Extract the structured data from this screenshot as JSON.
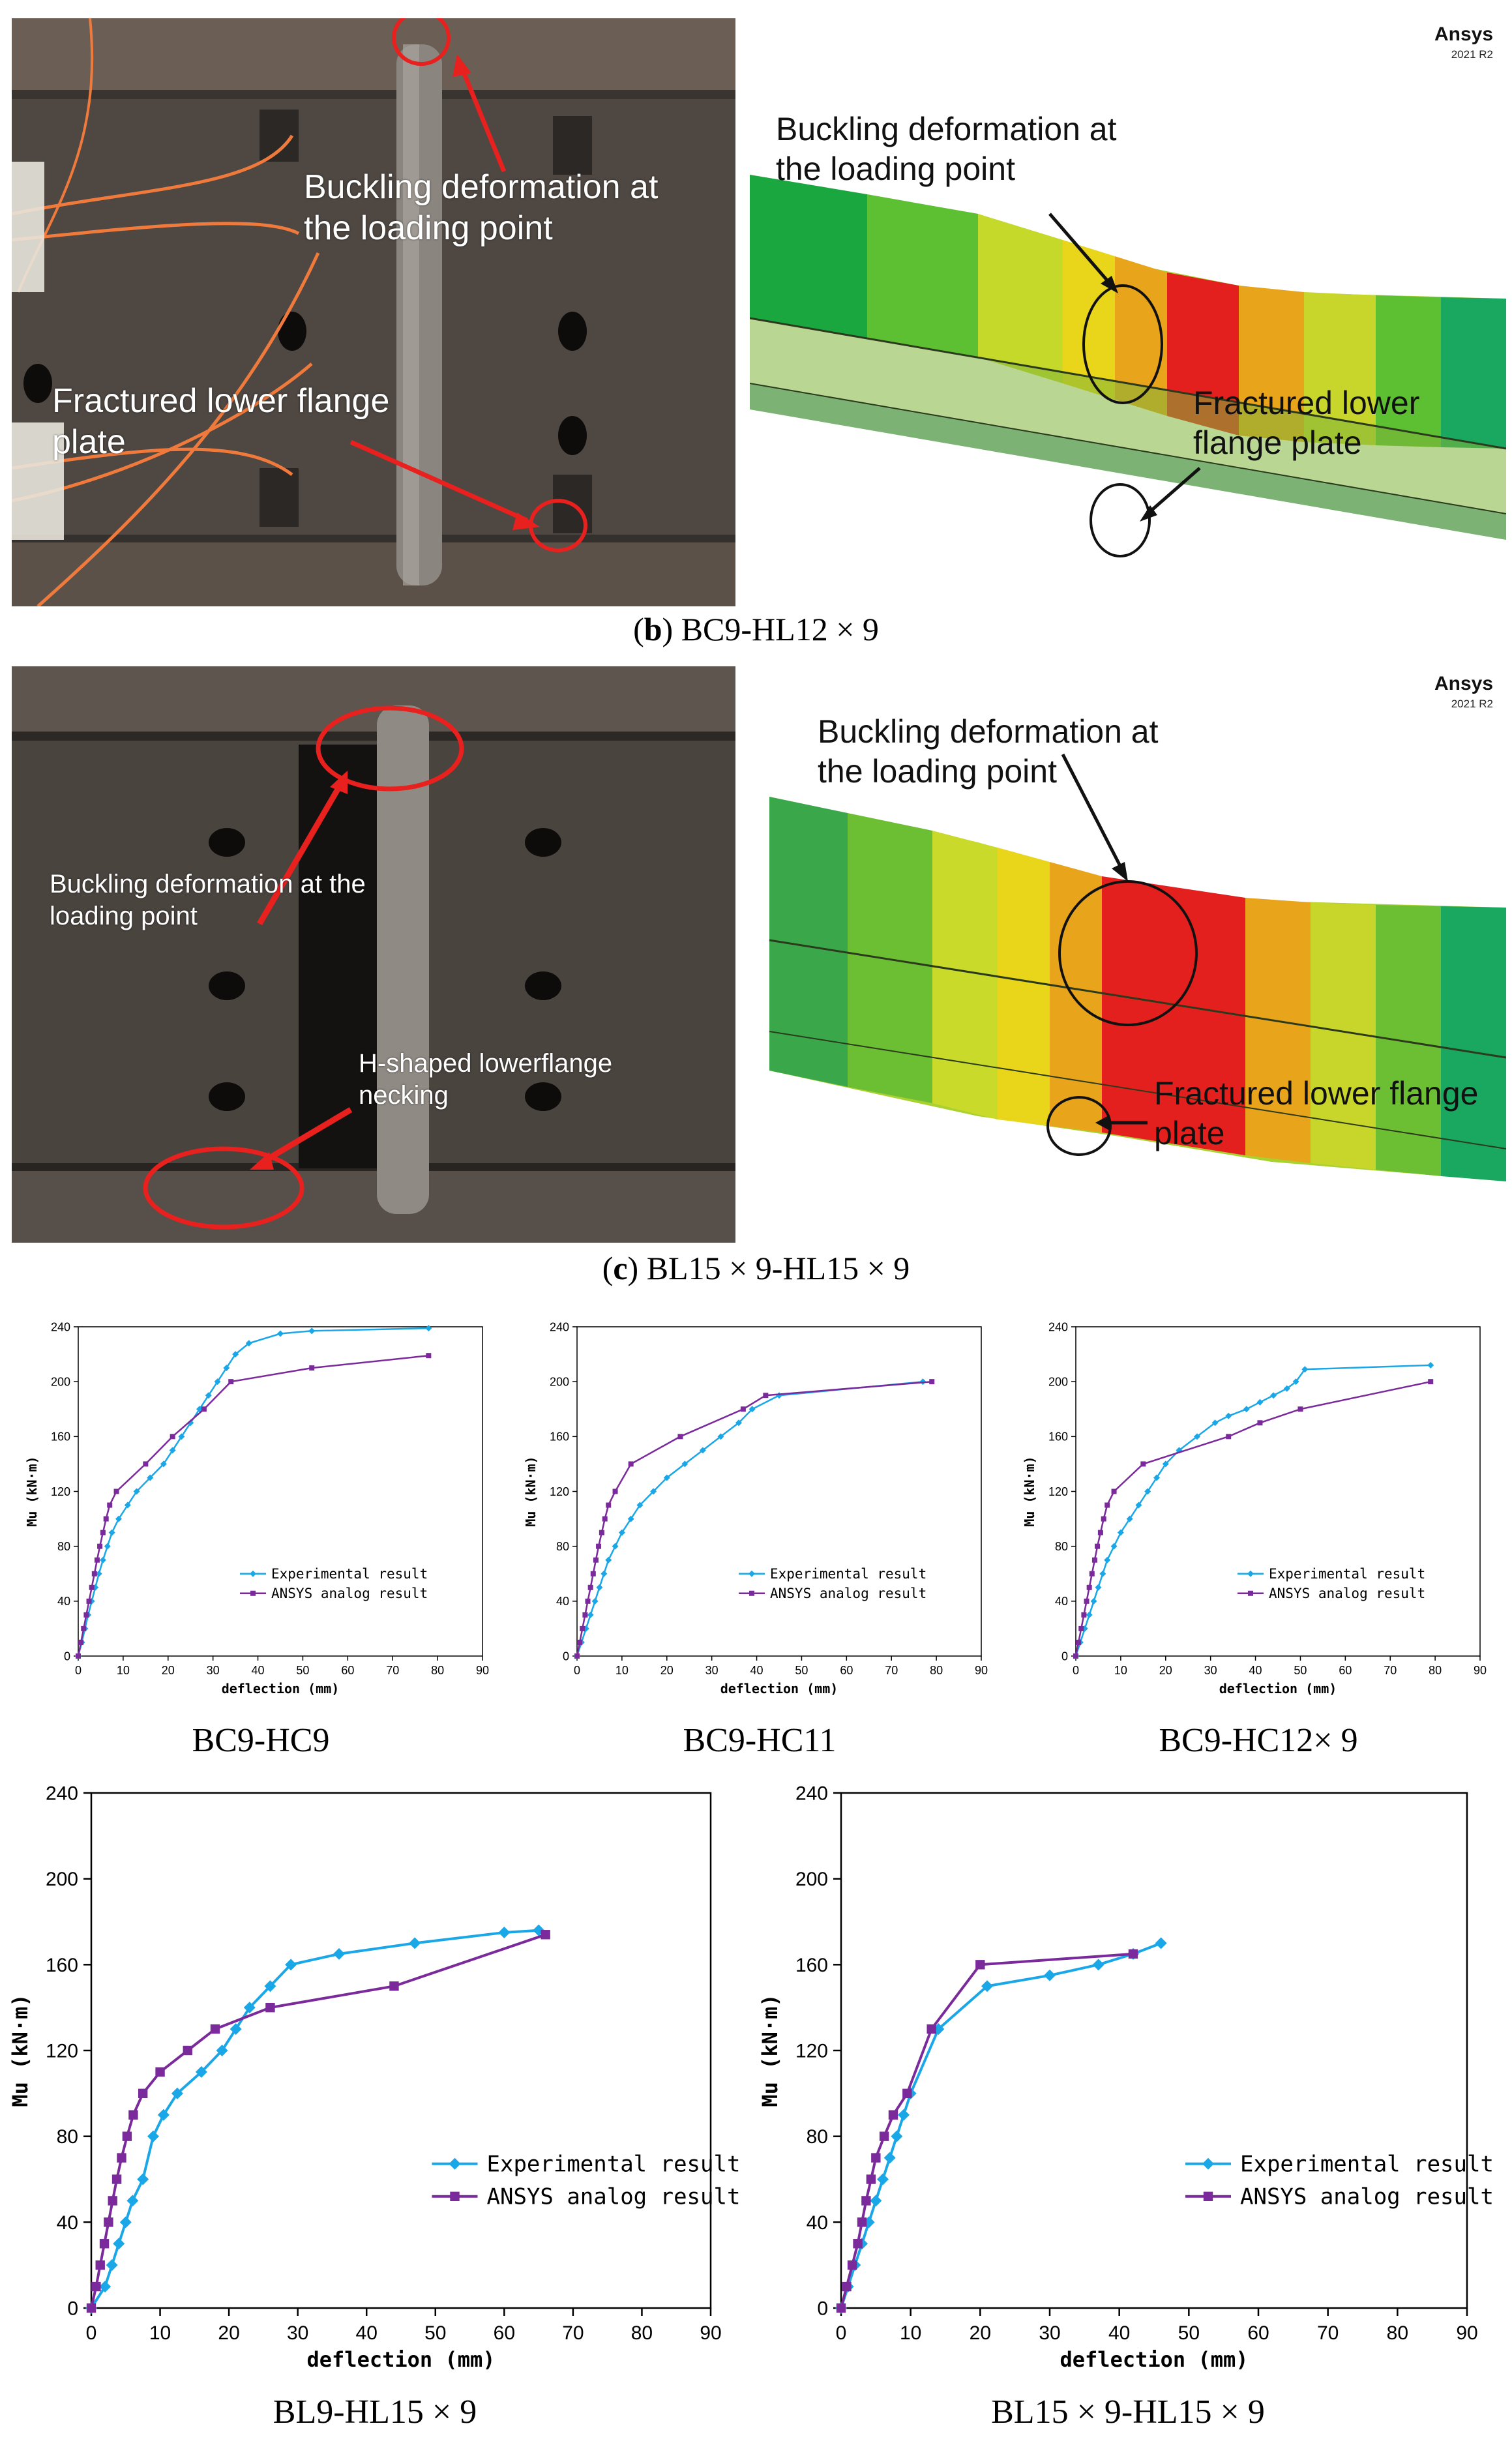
{
  "panel_b": {
    "caption_letter": "b",
    "caption_text": "BC9-HL12 × 9",
    "photo": {
      "label_buckling": "Buckling deformation at\nthe loading point",
      "label_fracture": "Fractured lower flange\nplate"
    },
    "fem": {
      "brand": "Ansys",
      "version": "2021 R2",
      "label_buckling": "Buckling deformation at\nthe loading point",
      "label_fracture": "Fractured lower\nflange plate"
    }
  },
  "panel_c": {
    "caption_letter": "c",
    "caption_text": "BL15 × 9-HL15 × 9",
    "photo": {
      "label_buckling": "Buckling deformation at the\nloading point",
      "label_necking": "H-shaped lowerflange\nnecking"
    },
    "fem": {
      "brand": "Ansys",
      "version": "2021 R2",
      "label_buckling": "Buckling deformation at\nthe loading point",
      "label_fracture": "Fractured lower flange\nplate"
    }
  },
  "colors": {
    "experimental": "#1aa7e8",
    "ansys": "#7a2a9a",
    "annotation_red": "#e8201e"
  },
  "chart_data": [
    {
      "type": "line",
      "caption": "BC9-HC9",
      "xlabel": "deflection (mm)",
      "ylabel": "Mu (kN·m)",
      "xlim": [
        0,
        90
      ],
      "ylim": [
        0,
        240
      ],
      "xticks": [
        0,
        10,
        20,
        30,
        40,
        50,
        60,
        70,
        80,
        90
      ],
      "yticks": [
        0,
        40,
        80,
        120,
        160,
        200,
        240
      ],
      "legend": "bottom-right",
      "series": [
        {
          "name": "Experimental result",
          "marker": "diamond",
          "x": [
            0,
            0.8,
            1.5,
            2.2,
            3,
            3.8,
            4.6,
            5.5,
            6.5,
            7.5,
            9,
            11,
            13,
            16,
            19,
            21,
            23,
            25,
            27,
            29,
            31,
            33,
            35,
            38,
            45,
            52,
            78
          ],
          "y": [
            0,
            10,
            20,
            30,
            40,
            50,
            60,
            70,
            80,
            90,
            100,
            110,
            120,
            130,
            140,
            150,
            160,
            170,
            180,
            190,
            200,
            210,
            220,
            228,
            235,
            237,
            239
          ]
        },
        {
          "name": "ANSYS analog result",
          "marker": "square",
          "x": [
            0,
            0.6,
            1.2,
            1.8,
            2.4,
            3,
            3.6,
            4.2,
            4.8,
            5.5,
            6.2,
            7,
            8.5,
            15,
            21,
            28,
            34,
            52,
            78
          ],
          "y": [
            0,
            10,
            20,
            30,
            40,
            50,
            60,
            70,
            80,
            90,
            100,
            110,
            120,
            140,
            160,
            180,
            200,
            210,
            219
          ]
        }
      ]
    },
    {
      "type": "line",
      "caption": "BC9-HC11",
      "xlabel": "deflection (mm)",
      "ylabel": "Mu (kN·m)",
      "xlim": [
        0,
        90
      ],
      "ylim": [
        0,
        240
      ],
      "xticks": [
        0,
        10,
        20,
        30,
        40,
        50,
        60,
        70,
        80,
        90
      ],
      "yticks": [
        0,
        40,
        80,
        120,
        160,
        200,
        240
      ],
      "legend": "bottom-right",
      "series": [
        {
          "name": "Experimental result",
          "marker": "diamond",
          "x": [
            0,
            1,
            2,
            3,
            4,
            5,
            6,
            7,
            8.5,
            10,
            12,
            14,
            17,
            20,
            24,
            28,
            32,
            36,
            39,
            45,
            77
          ],
          "y": [
            0,
            10,
            20,
            30,
            40,
            50,
            60,
            70,
            80,
            90,
            100,
            110,
            120,
            130,
            140,
            150,
            160,
            170,
            180,
            190,
            200
          ]
        },
        {
          "name": "ANSYS analog result",
          "marker": "square",
          "x": [
            0,
            0.6,
            1.2,
            1.8,
            2.4,
            3,
            3.6,
            4.2,
            4.8,
            5.5,
            6.2,
            7,
            8.5,
            12,
            23,
            37,
            42,
            79
          ],
          "y": [
            0,
            10,
            20,
            30,
            40,
            50,
            60,
            70,
            80,
            90,
            100,
            110,
            120,
            140,
            160,
            180,
            190,
            200
          ]
        }
      ]
    },
    {
      "type": "line",
      "caption": "BC9-HC12× 9",
      "xlabel": "deflection (mm)",
      "ylabel": "Mu (kN·m)",
      "xlim": [
        0,
        90
      ],
      "ylim": [
        0,
        240
      ],
      "xticks": [
        0,
        10,
        20,
        30,
        40,
        50,
        60,
        70,
        80,
        90
      ],
      "yticks": [
        0,
        40,
        80,
        120,
        160,
        200,
        240
      ],
      "legend": "bottom-right",
      "series": [
        {
          "name": "Experimental result",
          "marker": "diamond",
          "x": [
            0,
            1,
            2,
            3,
            4,
            5,
            6,
            7,
            8.5,
            10,
            12,
            14,
            16,
            18,
            20,
            23,
            27,
            31,
            34,
            38,
            41,
            44,
            47,
            49,
            51,
            79
          ],
          "y": [
            0,
            10,
            20,
            30,
            40,
            50,
            60,
            70,
            80,
            90,
            100,
            110,
            120,
            130,
            140,
            150,
            160,
            170,
            175,
            180,
            185,
            190,
            195,
            200,
            209,
            212
          ]
        },
        {
          "name": "ANSYS analog result",
          "marker": "square",
          "x": [
            0,
            0.6,
            1.2,
            1.8,
            2.4,
            3,
            3.6,
            4.2,
            4.8,
            5.5,
            6.2,
            7,
            8.5,
            15,
            34,
            41,
            50,
            79
          ],
          "y": [
            0,
            10,
            20,
            30,
            40,
            50,
            60,
            70,
            80,
            90,
            100,
            110,
            120,
            140,
            160,
            170,
            180,
            200
          ]
        }
      ]
    },
    {
      "type": "line",
      "caption": "BL9-HL15 × 9",
      "xlabel": "deflection (mm)",
      "ylabel": "Mu (kN·m)",
      "xlim": [
        0,
        90
      ],
      "ylim": [
        0,
        240
      ],
      "xticks": [
        0,
        10,
        20,
        30,
        40,
        50,
        60,
        70,
        80,
        90
      ],
      "yticks": [
        0,
        40,
        80,
        120,
        160,
        200,
        240
      ],
      "legend": "bottom-right",
      "series": [
        {
          "name": "Experimental result",
          "marker": "diamond",
          "x": [
            0,
            2,
            3,
            4,
            5,
            6,
            7.5,
            9,
            10.5,
            12.5,
            16,
            19,
            21,
            23,
            26,
            29,
            36,
            47,
            60,
            65
          ],
          "y": [
            0,
            10,
            20,
            30,
            40,
            50,
            60,
            80,
            90,
            100,
            110,
            120,
            130,
            140,
            150,
            160,
            165,
            170,
            175,
            176
          ]
        },
        {
          "name": "ANSYS analog result",
          "marker": "square",
          "x": [
            0,
            0.7,
            1.3,
            1.9,
            2.5,
            3.1,
            3.7,
            4.4,
            5.2,
            6.1,
            7.5,
            10,
            14,
            18,
            26,
            44,
            66
          ],
          "y": [
            0,
            10,
            20,
            30,
            40,
            50,
            60,
            70,
            80,
            90,
            100,
            110,
            120,
            130,
            140,
            150,
            174
          ]
        }
      ]
    },
    {
      "type": "line",
      "caption": "BL15 × 9-HL15 × 9",
      "xlabel": "deflection (mm)",
      "ylabel": "Mu (kN·m)",
      "xlim": [
        0,
        90
      ],
      "ylim": [
        0,
        240
      ],
      "xticks": [
        0,
        10,
        20,
        30,
        40,
        50,
        60,
        70,
        80,
        90
      ],
      "yticks": [
        0,
        40,
        80,
        120,
        160,
        200,
        240
      ],
      "legend": "bottom-right",
      "series": [
        {
          "name": "Experimental result",
          "marker": "diamond",
          "x": [
            0,
            1,
            2,
            3,
            4,
            5,
            6,
            7,
            8,
            9,
            10,
            14,
            21,
            30,
            37,
            42,
            46
          ],
          "y": [
            0,
            10,
            20,
            30,
            40,
            50,
            60,
            70,
            80,
            90,
            100,
            130,
            150,
            155,
            160,
            165,
            170
          ]
        },
        {
          "name": "ANSYS analog result",
          "marker": "square",
          "x": [
            0,
            0.8,
            1.6,
            2.4,
            3,
            3.6,
            4.3,
            5,
            6.2,
            7.5,
            9.5,
            13,
            20,
            42
          ],
          "y": [
            0,
            10,
            20,
            30,
            40,
            50,
            60,
            70,
            80,
            90,
            100,
            130,
            160,
            165
          ]
        }
      ]
    }
  ]
}
